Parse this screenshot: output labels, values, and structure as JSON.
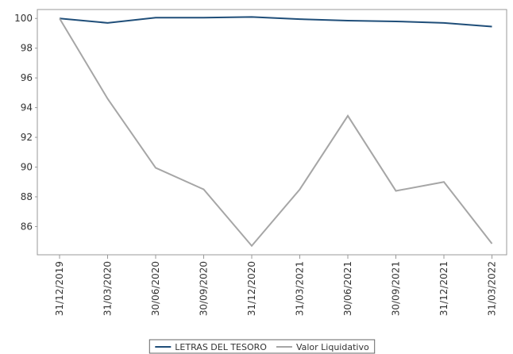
{
  "chart_data": {
    "type": "line",
    "categories": [
      "31/12/2019",
      "31/03/2020",
      "30/06/2020",
      "30/09/2020",
      "31/12/2020",
      "31/03/2021",
      "30/06/2021",
      "30/09/2021",
      "31/12/2021",
      "31/03/2022"
    ],
    "series": [
      {
        "name": "LETRAS DEL TESORO",
        "color": "#1f4e79",
        "values": [
          100,
          99.7,
          100.05,
          100.05,
          100.1,
          99.95,
          99.85,
          99.8,
          99.7,
          99.45
        ]
      },
      {
        "name": "Valor Liquidativo",
        "color": "#a6a6a6",
        "values": [
          100,
          94.6,
          89.95,
          88.5,
          84.7,
          88.5,
          93.45,
          88.4,
          89.0,
          84.85
        ]
      }
    ],
    "ylim": [
      84.1,
      100.6
    ],
    "yticks": [
      86,
      88,
      90,
      92,
      94,
      96,
      98,
      100
    ],
    "grid": false,
    "legend": "bottom"
  }
}
